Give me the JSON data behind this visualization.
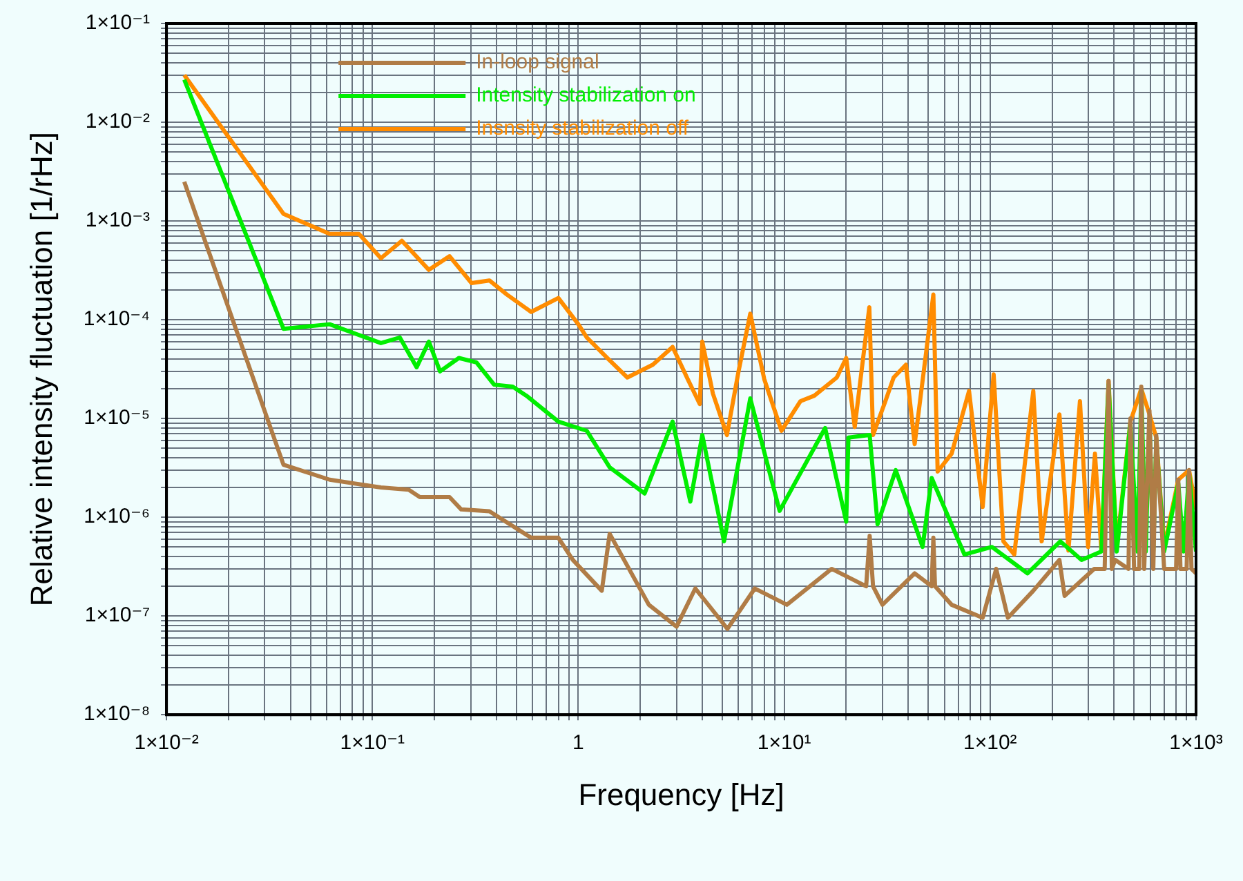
{
  "chart_data": {
    "type": "line",
    "xlabel": "Frequency [Hz]",
    "ylabel": "Relative intensity fluctuation [1/rHz]",
    "log": "xy",
    "grid": true,
    "legend": "top",
    "marker": "none",
    "line_style": "solid",
    "xlim": [
      0.01,
      1000
    ],
    "xticks": [
      {
        "value": 0.01,
        "label": "1×10⁻²"
      },
      {
        "value": 0.02,
        "label": null
      },
      {
        "value": 0.03,
        "label": null
      },
      {
        "value": 0.04,
        "label": null
      },
      {
        "value": 0.05,
        "label": null
      },
      {
        "value": 0.06,
        "label": null
      },
      {
        "value": 0.07,
        "label": null
      },
      {
        "value": 0.08,
        "label": null
      },
      {
        "value": 0.09,
        "label": null
      },
      {
        "value": 0.1,
        "label": "1×10⁻¹"
      },
      {
        "value": 0.2,
        "label": null
      },
      {
        "value": 0.3,
        "label": null
      },
      {
        "value": 0.4,
        "label": null
      },
      {
        "value": 0.5,
        "label": null
      },
      {
        "value": 0.6,
        "label": null
      },
      {
        "value": 0.7,
        "label": null
      },
      {
        "value": 0.8,
        "label": null
      },
      {
        "value": 0.9,
        "label": null
      },
      1,
      {
        "value": 2,
        "label": null
      },
      {
        "value": 3,
        "label": null
      },
      {
        "value": 4,
        "label": null
      },
      {
        "value": 5,
        "label": null
      },
      {
        "value": 6,
        "label": null
      },
      {
        "value": 7,
        "label": null
      },
      {
        "value": 8,
        "label": null
      },
      {
        "value": 9,
        "label": null
      },
      {
        "value": 10,
        "label": "1×10¹"
      },
      {
        "value": 20,
        "label": null
      },
      {
        "value": 30,
        "label": null
      },
      {
        "value": 40,
        "label": null
      },
      {
        "value": 50,
        "label": null
      },
      {
        "value": 60,
        "label": null
      },
      {
        "value": 70,
        "label": null
      },
      {
        "value": 80,
        "label": null
      },
      {
        "value": 90,
        "label": null
      },
      {
        "value": 100,
        "label": "1×10²"
      },
      {
        "value": 200,
        "label": null
      },
      {
        "value": 300,
        "label": null
      },
      {
        "value": 400,
        "label": null
      },
      {
        "value": 500,
        "label": null
      },
      {
        "value": 600,
        "label": null
      },
      {
        "value": 700,
        "label": null
      },
      {
        "value": 800,
        "label": null
      },
      {
        "value": 900,
        "label": null
      },
      {
        "value": 1000,
        "label": "1×10³"
      }
    ],
    "ylim": [
      1e-08,
      0.1
    ],
    "yticks": [
      {
        "value": 1e-08,
        "label": "1×10⁻⁸"
      },
      {
        "value": 2e-08,
        "label": null
      },
      {
        "value": 3e-08,
        "label": null
      },
      {
        "value": 4e-08,
        "label": null
      },
      {
        "value": 5e-08,
        "label": null
      },
      {
        "value": 6e-08,
        "label": null
      },
      {
        "value": 7e-08,
        "label": null
      },
      {
        "value": 8e-08,
        "label": null
      },
      {
        "value": 9e-08,
        "label": null
      },
      {
        "value": 1e-07,
        "label": "1×10⁻⁷"
      },
      {
        "value": 2e-07,
        "label": null
      },
      {
        "value": 3e-07,
        "label": null
      },
      {
        "value": 4e-07,
        "label": null
      },
      {
        "value": 5e-07,
        "label": null
      },
      {
        "value": 6e-07,
        "label": null
      },
      {
        "value": 7e-07,
        "label": null
      },
      {
        "value": 8e-07,
        "label": null
      },
      {
        "value": 9e-07,
        "label": null
      },
      {
        "value": 1e-06,
        "label": "1×10⁻⁶"
      },
      {
        "value": 2e-06,
        "label": null
      },
      {
        "value": 3e-06,
        "label": null
      },
      {
        "value": 4e-06,
        "label": null
      },
      {
        "value": 5e-06,
        "label": null
      },
      {
        "value": 6e-06,
        "label": null
      },
      {
        "value": 7e-06,
        "label": null
      },
      {
        "value": 8e-06,
        "label": null
      },
      {
        "value": 9e-06,
        "label": null
      },
      {
        "value": 1e-05,
        "label": "1×10⁻⁵"
      },
      {
        "value": 2e-05,
        "label": null
      },
      {
        "value": 3e-05,
        "label": null
      },
      {
        "value": 4e-05,
        "label": null
      },
      {
        "value": 5e-05,
        "label": null
      },
      {
        "value": 6e-05,
        "label": null
      },
      {
        "value": 7e-05,
        "label": null
      },
      {
        "value": 8e-05,
        "label": null
      },
      {
        "value": 9e-05,
        "label": null
      },
      {
        "value": 0.0001,
        "label": "1×10⁻⁴"
      },
      {
        "value": 0.0002,
        "label": null
      },
      {
        "value": 0.0003,
        "label": null
      },
      {
        "value": 0.0004,
        "label": null
      },
      {
        "value": 0.0005,
        "label": null
      },
      {
        "value": 0.0006,
        "label": null
      },
      {
        "value": 0.0007,
        "label": null
      },
      {
        "value": 0.0008,
        "label": null
      },
      {
        "value": 0.0009,
        "label": null
      },
      {
        "value": 0.001,
        "label": "1×10⁻³"
      },
      {
        "value": 0.002,
        "label": null
      },
      {
        "value": 0.003,
        "label": null
      },
      {
        "value": 0.004,
        "label": null
      },
      {
        "value": 0.005,
        "label": null
      },
      {
        "value": 0.006,
        "label": null
      },
      {
        "value": 0.007,
        "label": null
      },
      {
        "value": 0.008,
        "label": null
      },
      {
        "value": 0.009,
        "label": null
      },
      {
        "value": 0.01,
        "label": "1×10⁻²"
      },
      {
        "value": 0.02,
        "label": null
      },
      {
        "value": 0.03,
        "label": null
      },
      {
        "value": 0.04,
        "label": null
      },
      {
        "value": 0.05,
        "label": null
      },
      {
        "value": 0.06,
        "label": null
      },
      {
        "value": 0.07,
        "label": null
      },
      {
        "value": 0.08,
        "label": null
      },
      {
        "value": 0.09,
        "label": null
      },
      {
        "value": 0.1,
        "label": "1×10⁻¹"
      }
    ],
    "series": [
      {
        "name": "In-loop signal",
        "color": "#b07c46",
        "x": [
          0.0122,
          0.037,
          0.062,
          0.11,
          0.15,
          0.17,
          0.237,
          0.27,
          0.37,
          0.59,
          0.8,
          0.94,
          1.3,
          1.42,
          2.2,
          3.0,
          3.7,
          5.3,
          7.2,
          10.3,
          17,
          25,
          26,
          27,
          30,
          43,
          52,
          53,
          54,
          65,
          92,
          107,
          122,
          162,
          217,
          230,
          320,
          360,
          376,
          390,
          405,
          470,
          480,
          500,
          530,
          542,
          560,
          594,
          620,
          641,
          700,
          800,
          820,
          840,
          900,
          925,
          950,
          1000
        ],
        "values": [
          0.0025,
          3.4e-06,
          2.4e-06,
          2e-06,
          1.9e-06,
          1.6e-06,
          1.6e-06,
          1.2e-06,
          1.15e-06,
          6.2e-07,
          6.2e-07,
          3.7e-07,
          1.8e-07,
          6.8e-07,
          1.3e-07,
          7.8e-08,
          1.9e-07,
          7.4e-08,
          1.9e-07,
          1.3e-07,
          3e-07,
          2e-07,
          6.5e-07,
          2e-07,
          1.3e-07,
          2.7e-07,
          2e-07,
          6.2e-07,
          2e-07,
          1.3e-07,
          9.6e-08,
          3e-07,
          9.6e-08,
          1.8e-07,
          3.7e-07,
          1.6e-07,
          3e-07,
          3e-07,
          2.4e-05,
          3e-07,
          3.7e-07,
          3e-07,
          1e-05,
          3e-07,
          3e-07,
          2.1e-05,
          3e-07,
          1.2e-05,
          3e-07,
          6.7e-06,
          3e-07,
          3e-07,
          2.4e-06,
          3e-07,
          3e-07,
          3e-06,
          3e-07,
          2.7e-07
        ]
      },
      {
        "name": "Intensity stabilization on",
        "color": "#00ee00",
        "x": [
          0.0122,
          0.037,
          0.062,
          0.11,
          0.136,
          0.164,
          0.188,
          0.213,
          0.263,
          0.32,
          0.39,
          0.48,
          0.56,
          0.8,
          1.1,
          1.42,
          2.1,
          2.87,
          3.5,
          4.0,
          5.1,
          6.84,
          9.5,
          15.8,
          20,
          20.5,
          26,
          28.4,
          34.8,
          47,
          52,
          75,
          102,
          152,
          219,
          278,
          347,
          376,
          412,
          480,
          520,
          542,
          570,
          594,
          620,
          641,
          700,
          820,
          870,
          925,
          1000
        ],
        "values": [
          0.027,
          8.1e-05,
          9e-05,
          5.8e-05,
          6.6e-05,
          3.3e-05,
          6e-05,
          3e-05,
          4.1e-05,
          3.7e-05,
          2.2e-05,
          2.1e-05,
          1.7e-05,
          9.3e-06,
          7.5e-06,
          3.2e-06,
          1.74e-06,
          9.3e-06,
          1.44e-06,
          6.8e-06,
          5.7e-07,
          1.6e-05,
          1.16e-06,
          8e-06,
          9e-07,
          6.4e-06,
          6.8e-06,
          8.5e-07,
          3e-06,
          5e-07,
          2.5e-06,
          4.2e-07,
          5e-07,
          2.7e-07,
          5.7e-07,
          3.7e-07,
          4.5e-07,
          2.2e-05,
          4.5e-07,
          9e-06,
          4.5e-07,
          1.9e-05,
          4.5e-07,
          1e-05,
          4.5e-07,
          6e-06,
          4.5e-07,
          2.2e-06,
          4.5e-07,
          2.8e-06,
          4.5e-07
        ]
      },
      {
        "name": "Insnsity stabilization off",
        "color": "#ff8c00",
        "x": [
          0.0122,
          0.037,
          0.062,
          0.086,
          0.11,
          0.139,
          0.188,
          0.237,
          0.303,
          0.37,
          0.45,
          0.59,
          0.8,
          1.0,
          1.1,
          1.4,
          1.73,
          2.3,
          2.87,
          3.4,
          3.89,
          4.0,
          4.5,
          5.27,
          6.0,
          6.84,
          8.0,
          9.7,
          12,
          14,
          18,
          20,
          22,
          25.9,
          27,
          31,
          34,
          39,
          43,
          53,
          55.6,
          65,
          79,
          92,
          104,
          116,
          131,
          162,
          178,
          217,
          240,
          273,
          299,
          323,
          347,
          376,
          412,
          480,
          542,
          594,
          641,
          700,
          820,
          925,
          1000
        ],
        "values": [
          0.03,
          0.00118,
          0.00074,
          0.00074,
          0.00042,
          0.00063,
          0.00032,
          0.00044,
          0.000235,
          0.00025,
          0.00018,
          0.00012,
          0.000166,
          9e-05,
          6.6e-05,
          4e-05,
          2.6e-05,
          3.5e-05,
          5.3e-05,
          2.5e-05,
          1.4e-05,
          6e-05,
          1.8e-05,
          6.8e-06,
          3e-05,
          0.000115,
          2.5e-05,
          7.5e-06,
          1.5e-05,
          1.7e-05,
          2.6e-05,
          4.1e-05,
          8.2e-06,
          0.000134,
          6.8e-06,
          1.5e-05,
          2.6e-05,
          3.5e-05,
          5.5e-06,
          0.00018,
          2.9e-06,
          4.4e-06,
          1.9e-05,
          1.27e-06,
          2.8e-05,
          5.7e-07,
          4.2e-07,
          1.9e-05,
          5.7e-07,
          1.1e-05,
          4.6e-07,
          1.5e-05,
          5e-07,
          4.4e-06,
          4.6e-07,
          2.4e-05,
          5e-07,
          9.3e-06,
          2e-05,
          1.1e-05,
          6.4e-06,
          5e-07,
          2.4e-06,
          3e-06,
          1.2e-06
        ]
      }
    ]
  }
}
